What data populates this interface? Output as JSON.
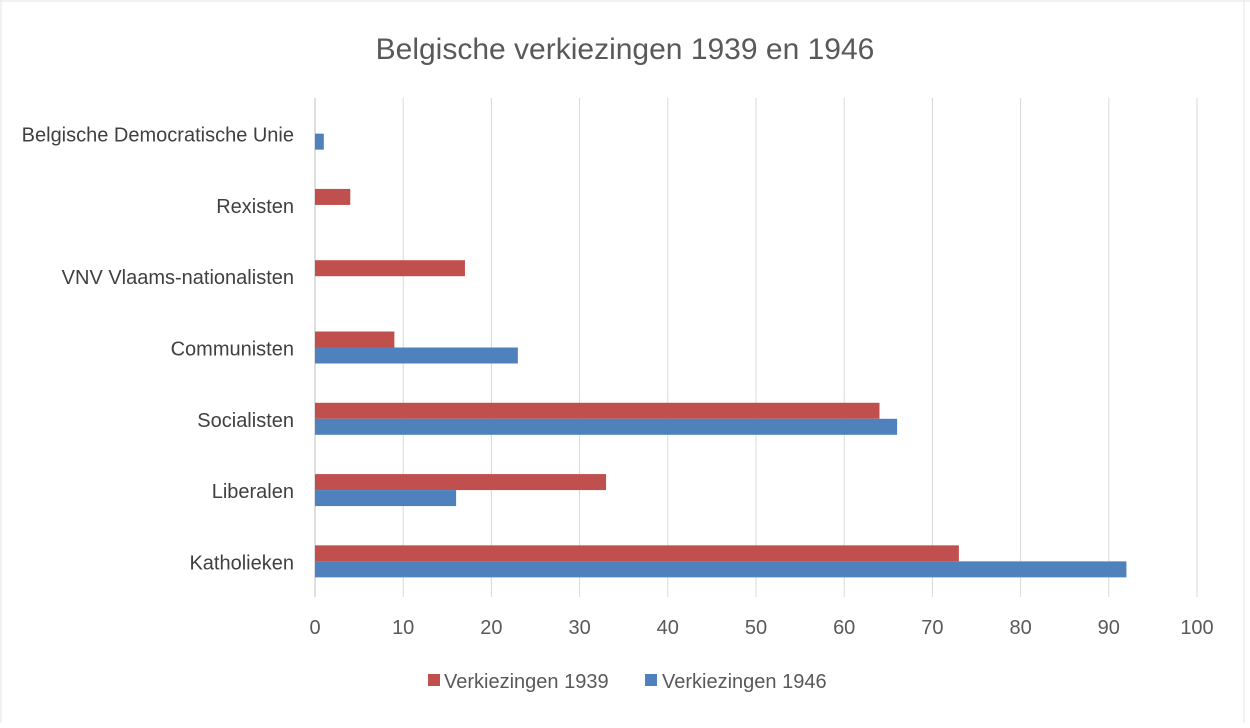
{
  "chart_data": {
    "type": "bar",
    "orientation": "horizontal",
    "title": "Belgische verkiezingen 1939 en 1946",
    "categories": [
      "Katholieken",
      "Liberalen",
      "Socialisten",
      "Communisten",
      "VNV Vlaams-nationalisten",
      "Rexisten",
      "Belgische Democratische Unie"
    ],
    "series": [
      {
        "name": "Verkiezingen 1939",
        "color": "#c0504d",
        "values": [
          73,
          33,
          64,
          9,
          17,
          4,
          null
        ]
      },
      {
        "name": "Verkiezingen 1946",
        "color": "#4f81bd",
        "values": [
          92,
          16,
          66,
          23,
          null,
          null,
          1
        ]
      }
    ],
    "xlim": [
      0,
      100
    ],
    "xticks": [
      "0",
      "10",
      "20",
      "30",
      "40",
      "50",
      "60",
      "70",
      "80",
      "90",
      "100"
    ],
    "grid": true,
    "legend_position": "bottom"
  }
}
